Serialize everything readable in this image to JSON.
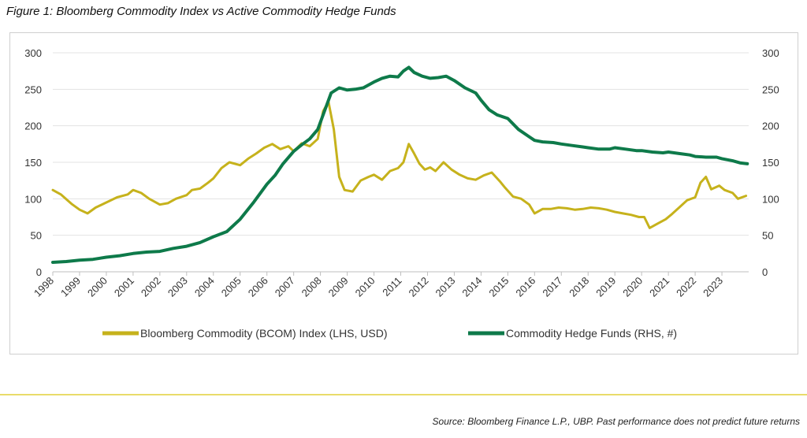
{
  "figure": {
    "title": "Figure 1: Bloomberg Commodity Index vs Active Commodity Hedge Funds",
    "source": "Source: Bloomberg Finance L.P., UBP. Past performance does not predict future returns"
  },
  "colors": {
    "bcom": "#c6b21c",
    "funds": "#0e7a4a",
    "divider": "#e9dc6a",
    "grid": "#e3e3e3",
    "axis": "#bfbfbf"
  },
  "chart_data": {
    "type": "line",
    "x_categories": [
      "1998",
      "1999",
      "2000",
      "2001",
      "2002",
      "2003",
      "2004",
      "2005",
      "2006",
      "2007",
      "2008",
      "2009",
      "2010",
      "2011",
      "2012",
      "2013",
      "2014",
      "2015",
      "2016",
      "2017",
      "2018",
      "2019",
      "2020",
      "2021",
      "2022",
      "2023"
    ],
    "y_left": {
      "ylim": [
        0,
        300
      ],
      "ticks": [
        "0",
        "50",
        "100",
        "150",
        "200",
        "250",
        "300"
      ]
    },
    "y_right": {
      "ylim": [
        0,
        300
      ],
      "ticks": [
        "0",
        "50",
        "100",
        "150",
        "200",
        "250",
        "300"
      ]
    },
    "grid": "horizontal",
    "legend_position": "bottom",
    "series": [
      {
        "name": "Bloomberg Commodity (BCOM) Index (LHS, USD)",
        "axis": "left",
        "x": [
          1998.0,
          1998.3,
          1998.7,
          1999.0,
          1999.3,
          1999.6,
          2000.0,
          2000.4,
          2000.8,
          2001.0,
          2001.3,
          2001.6,
          2002.0,
          2002.3,
          2002.6,
          2003.0,
          2003.2,
          2003.5,
          2003.8,
          2004.0,
          2004.3,
          2004.6,
          2005.0,
          2005.3,
          2005.6,
          2005.9,
          2006.2,
          2006.5,
          2006.8,
          2007.0,
          2007.3,
          2007.6,
          2007.9,
          2008.1,
          2008.3,
          2008.5,
          2008.7,
          2008.9,
          2009.2,
          2009.5,
          2009.8,
          2010.0,
          2010.3,
          2010.6,
          2010.9,
          2011.1,
          2011.3,
          2011.5,
          2011.7,
          2011.9,
          2012.1,
          2012.3,
          2012.6,
          2012.9,
          2013.2,
          2013.5,
          2013.8,
          2014.1,
          2014.4,
          2014.7,
          2014.9,
          2015.2,
          2015.5,
          2015.8,
          2016.0,
          2016.3,
          2016.6,
          2016.9,
          2017.2,
          2017.5,
          2017.8,
          2018.1,
          2018.4,
          2018.7,
          2019.0,
          2019.3,
          2019.6,
          2019.9,
          2020.1,
          2020.3,
          2020.6,
          2020.9,
          2021.1,
          2021.4,
          2021.7,
          2022.0,
          2022.2,
          2022.4,
          2022.6,
          2022.9,
          2023.1,
          2023.4,
          2023.6,
          2023.9
        ],
        "values": [
          112,
          106,
          93,
          85,
          80,
          88,
          95,
          102,
          106,
          112,
          108,
          100,
          92,
          94,
          100,
          105,
          112,
          114,
          122,
          128,
          142,
          150,
          146,
          155,
          162,
          170,
          175,
          168,
          172,
          165,
          176,
          172,
          182,
          220,
          233,
          195,
          130,
          112,
          110,
          125,
          130,
          133,
          126,
          138,
          142,
          150,
          175,
          162,
          148,
          140,
          143,
          138,
          150,
          140,
          133,
          128,
          126,
          132,
          136,
          124,
          115,
          103,
          100,
          92,
          80,
          86,
          86,
          88,
          87,
          85,
          86,
          88,
          87,
          85,
          82,
          80,
          78,
          75,
          75,
          60,
          66,
          72,
          78,
          88,
          98,
          102,
          122,
          130,
          113,
          118,
          112,
          108,
          100,
          104
        ]
      },
      {
        "name": "Commodity Hedge Funds (RHS, #)",
        "axis": "right",
        "x": [
          1998.0,
          1998.5,
          1999.0,
          1999.5,
          2000.0,
          2000.5,
          2001.0,
          2001.5,
          2002.0,
          2002.5,
          2003.0,
          2003.5,
          2004.0,
          2004.5,
          2005.0,
          2005.5,
          2006.0,
          2006.3,
          2006.6,
          2007.0,
          2007.3,
          2007.6,
          2007.9,
          2008.1,
          2008.4,
          2008.7,
          2009.0,
          2009.3,
          2009.6,
          2010.0,
          2010.3,
          2010.6,
          2010.9,
          2011.1,
          2011.3,
          2011.5,
          2011.8,
          2012.1,
          2012.4,
          2012.7,
          2013.0,
          2013.4,
          2013.8,
          2014.0,
          2014.3,
          2014.6,
          2015.0,
          2015.4,
          2015.8,
          2016.0,
          2016.3,
          2016.7,
          2017.0,
          2017.4,
          2017.8,
          2018.0,
          2018.4,
          2018.8,
          2019.0,
          2019.4,
          2019.8,
          2020.0,
          2020.4,
          2020.8,
          2021.0,
          2021.4,
          2021.8,
          2022.0,
          2022.4,
          2022.8,
          2023.0,
          2023.4,
          2023.7,
          2023.95
        ],
        "values": [
          13,
          14,
          16,
          17,
          20,
          22,
          25,
          27,
          28,
          32,
          35,
          40,
          48,
          55,
          72,
          95,
          120,
          132,
          148,
          165,
          174,
          182,
          195,
          215,
          245,
          252,
          249,
          250,
          252,
          260,
          265,
          268,
          267,
          275,
          280,
          273,
          268,
          265,
          266,
          268,
          262,
          252,
          245,
          235,
          222,
          215,
          210,
          195,
          185,
          180,
          178,
          177,
          175,
          173,
          171,
          170,
          168,
          168,
          170,
          168,
          166,
          166,
          164,
          163,
          164,
          162,
          160,
          158,
          157,
          157,
          155,
          152,
          149,
          148
        ]
      }
    ]
  }
}
